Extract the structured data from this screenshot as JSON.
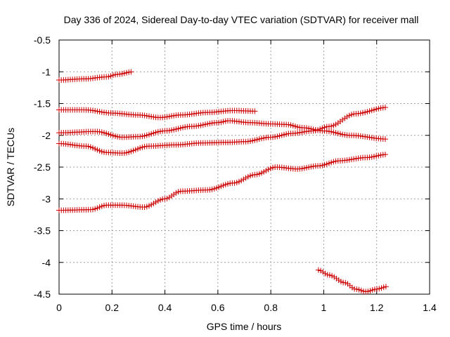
{
  "chart_data": {
    "type": "scatter",
    "title": "Day 336 of 2024, Sidereal Day-to-day VTEC variation (SDTVAR) for receiver mall",
    "xlabel": "GPS time / hours",
    "ylabel": "SDTVAR / TECUs",
    "xlim": [
      0,
      1.4
    ],
    "ylim": [
      -4.5,
      -0.5
    ],
    "xticks": [
      "0",
      "0.2",
      "0.4",
      "0.6",
      "0.8",
      "1",
      "1.2",
      "1.4"
    ],
    "yticks": [
      "-0.5",
      "-1",
      "-1.5",
      "-2",
      "-2.5",
      "-3",
      "-3.5",
      "-4",
      "-4.5"
    ],
    "grid": true,
    "marker": "plus",
    "marker_color": "#cc0000",
    "series": [
      {
        "name": "track-1",
        "anchors": [
          [
            0,
            -1.13
          ],
          [
            0.1,
            -1.11
          ],
          [
            0.18,
            -1.08
          ],
          [
            0.22,
            -1.04
          ],
          [
            0.28,
            -1.0
          ]
        ]
      },
      {
        "name": "track-2",
        "anchors": [
          [
            0,
            -1.6
          ],
          [
            0.1,
            -1.6
          ],
          [
            0.2,
            -1.65
          ],
          [
            0.3,
            -1.68
          ],
          [
            0.38,
            -1.72
          ],
          [
            0.46,
            -1.68
          ],
          [
            0.56,
            -1.64
          ],
          [
            0.66,
            -1.61
          ],
          [
            0.74,
            -1.62
          ]
        ]
      },
      {
        "name": "track-3",
        "anchors": [
          [
            0,
            -1.96
          ],
          [
            0.14,
            -1.94
          ],
          [
            0.24,
            -2.03
          ],
          [
            0.3,
            -2.02
          ],
          [
            0.4,
            -1.93
          ],
          [
            0.5,
            -1.86
          ],
          [
            0.6,
            -1.8
          ],
          [
            0.64,
            -1.77
          ],
          [
            0.72,
            -1.8
          ],
          [
            0.8,
            -1.82
          ],
          [
            0.86,
            -1.83
          ],
          [
            0.92,
            -1.88
          ],
          [
            1.0,
            -1.93
          ],
          [
            1.1,
            -2.0
          ],
          [
            1.24,
            -2.06
          ]
        ]
      },
      {
        "name": "track-4",
        "anchors": [
          [
            0,
            -2.13
          ],
          [
            0.1,
            -2.17
          ],
          [
            0.18,
            -2.27
          ],
          [
            0.24,
            -2.28
          ],
          [
            0.34,
            -2.17
          ],
          [
            0.44,
            -2.15
          ],
          [
            0.54,
            -2.12
          ],
          [
            0.64,
            -2.11
          ],
          [
            0.7,
            -2.1
          ],
          [
            0.8,
            -2.03
          ],
          [
            0.88,
            -1.97
          ],
          [
            0.96,
            -1.93
          ],
          [
            1.02,
            -1.86
          ],
          [
            1.12,
            -1.66
          ],
          [
            1.24,
            -1.56
          ]
        ]
      },
      {
        "name": "track-5",
        "anchors": [
          [
            0,
            -3.18
          ],
          [
            0.12,
            -3.17
          ],
          [
            0.18,
            -3.1
          ],
          [
            0.24,
            -3.1
          ],
          [
            0.32,
            -3.13
          ],
          [
            0.4,
            -3.0
          ],
          [
            0.46,
            -2.88
          ],
          [
            0.56,
            -2.86
          ],
          [
            0.66,
            -2.75
          ],
          [
            0.74,
            -2.62
          ],
          [
            0.82,
            -2.5
          ],
          [
            0.9,
            -2.53
          ],
          [
            0.98,
            -2.48
          ],
          [
            1.06,
            -2.4
          ],
          [
            1.16,
            -2.35
          ],
          [
            1.24,
            -2.3
          ]
        ]
      },
      {
        "name": "track-6",
        "anchors": [
          [
            0.98,
            -4.12
          ],
          [
            1.02,
            -4.2
          ],
          [
            1.08,
            -4.32
          ],
          [
            1.12,
            -4.42
          ],
          [
            1.16,
            -4.46
          ],
          [
            1.2,
            -4.42
          ],
          [
            1.24,
            -4.38
          ]
        ]
      }
    ]
  }
}
